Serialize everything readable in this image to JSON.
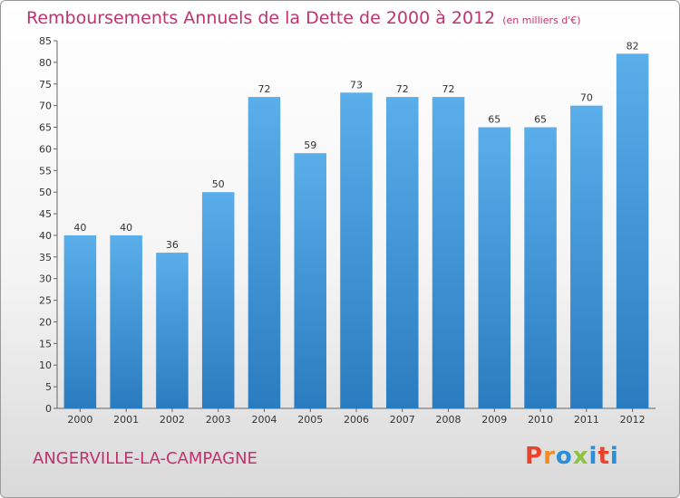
{
  "header": {
    "title": "Remboursements Annuels de la Dette de 2000 à 2012",
    "subtitle": "(en milliers d'€)"
  },
  "footer": {
    "city": "ANGERVILLE-LA-CAMPAGNE",
    "logo": "Proxiti"
  },
  "chart_data": {
    "type": "bar",
    "title": "Remboursements Annuels de la Dette de 2000 à 2012",
    "subtitle": "(en milliers d'€)",
    "categories": [
      "2000",
      "2001",
      "2002",
      "2003",
      "2004",
      "2005",
      "2006",
      "2007",
      "2008",
      "2009",
      "2010",
      "2011",
      "2012"
    ],
    "values": [
      40,
      40,
      36,
      50,
      72,
      59,
      73,
      72,
      72,
      65,
      65,
      70,
      82
    ],
    "ylim": [
      0,
      85
    ],
    "ytick_step": 5,
    "grid": false,
    "legend": "none",
    "bar_color_top": "#5aaeea",
    "bar_color_bottom": "#2a7cc0"
  },
  "colors": {
    "title": "#c2326e",
    "logo_letters": [
      "#e8432d",
      "#f28c1e",
      "#2a8fd6",
      "#8dc43f",
      "#2a8fd6",
      "#e8432d",
      "#2a8fd6"
    ]
  }
}
